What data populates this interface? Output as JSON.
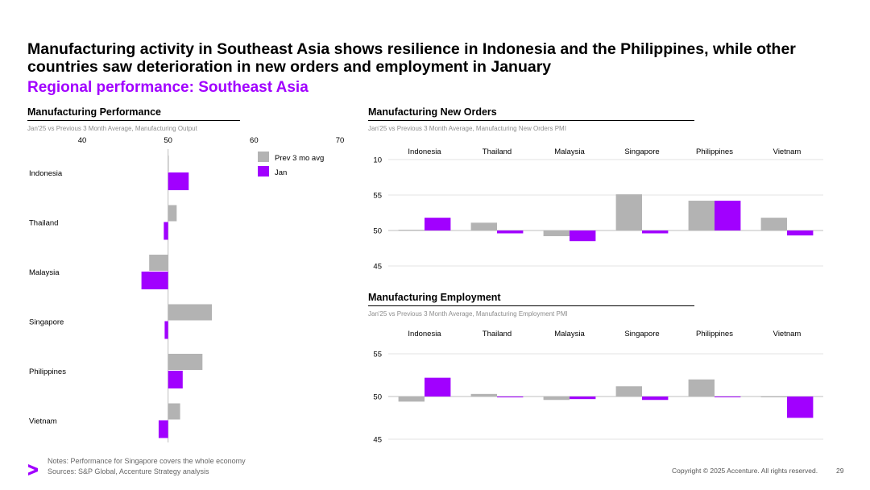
{
  "title": "Manufacturing activity in Southeast Asia shows resilience in Indonesia and the Philippines, while other countries saw deterioration in new orders and employment in January",
  "subtitle": "Regional performance: Southeast Asia",
  "colors": {
    "prev": "#b3b3b3",
    "jan": "#a100ff",
    "accent": "#a100ff"
  },
  "notes": [
    "Notes: Performance for Singapore covers the whole economy",
    "Sources: S&P Global, Accenture Strategy analysis"
  ],
  "copyright": "Copyright © 2025 Accenture. All rights reserved.",
  "page_number": "29",
  "chart_data": [
    {
      "id": "performance",
      "type": "bar",
      "orientation": "horizontal",
      "section_title": "Manufacturing Performance",
      "section_subtitle": "Jan'25 vs Previous 3 Month Average, Manufacturing Output",
      "categories": [
        "Indonesia",
        "Thailand",
        "Malaysia",
        "Singapore",
        "Philippines",
        "Vietnam"
      ],
      "baseline": 50,
      "xlim": [
        40,
        70
      ],
      "ticks": [
        "40",
        "50",
        "60",
        "70"
      ],
      "legend": [
        "Prev 3 mo avg",
        "Jan"
      ],
      "series": [
        {
          "name": "Prev 3 mo avg",
          "values": [
            50.0,
            51.0,
            47.8,
            55.1,
            54.0,
            51.4
          ]
        },
        {
          "name": "Jan",
          "values": [
            52.4,
            49.5,
            46.9,
            49.6,
            51.7,
            48.9
          ]
        }
      ]
    },
    {
      "id": "new-orders",
      "type": "bar",
      "section_title": "Manufacturing New Orders",
      "section_subtitle": "Jan'25 vs Previous 3 Month Average, Manufacturing New Orders PMI",
      "categories": [
        "Indonesia",
        "Thailand",
        "Malaysia",
        "Singapore",
        "Philippines",
        "Vietnam"
      ],
      "baseline": 50,
      "ylim": [
        45,
        60
      ],
      "ticks": [
        45,
        50,
        55
      ],
      "top_tick_label": "10",
      "series": [
        {
          "name": "Prev 3 mo avg",
          "values": [
            50.1,
            51.1,
            49.2,
            55.1,
            54.2,
            51.8
          ]
        },
        {
          "name": "Jan",
          "values": [
            51.8,
            49.6,
            48.5,
            49.6,
            54.2,
            49.3
          ]
        }
      ]
    },
    {
      "id": "employment",
      "type": "bar",
      "section_title": "Manufacturing Employment",
      "section_subtitle": "Jan'25 vs Previous 3 Month Average, Manufacturing Employment PMI",
      "categories": [
        "Indonesia",
        "Thailand",
        "Malaysia",
        "Singapore",
        "Philippines",
        "Vietnam"
      ],
      "baseline": 50,
      "ylim": [
        45,
        55
      ],
      "ticks": [
        45,
        50,
        55
      ],
      "series": [
        {
          "name": "Prev 3 mo avg",
          "values": [
            49.4,
            50.3,
            49.6,
            51.2,
            52.0,
            50.0
          ]
        },
        {
          "name": "Jan",
          "values": [
            52.2,
            49.9,
            49.7,
            49.6,
            50.0,
            47.5
          ]
        }
      ]
    }
  ]
}
